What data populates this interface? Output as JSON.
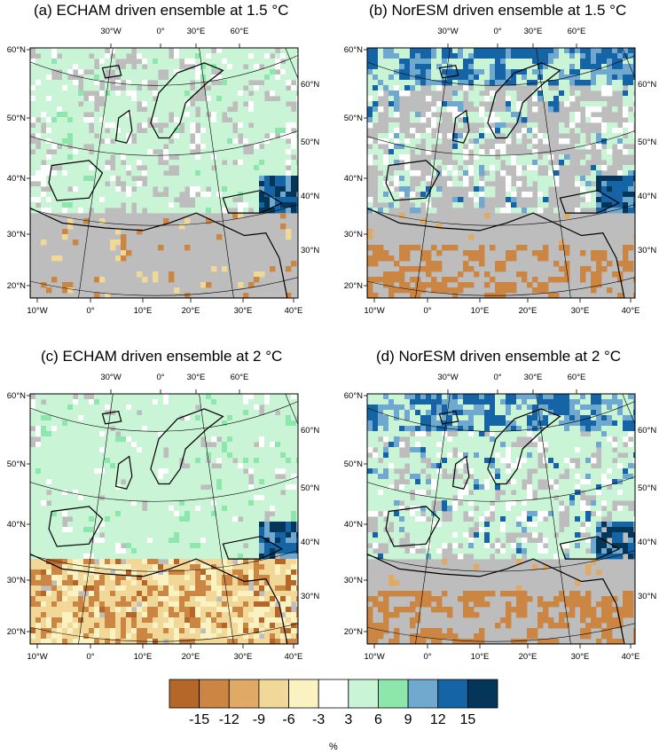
{
  "panels": [
    {
      "id": "a",
      "title": "(a) ECHAM driven ensemble at 1.5 °C",
      "model": "ECHAM",
      "warming": "1.5"
    },
    {
      "id": "b",
      "title": "(b) NorESM driven ensemble at 1.5 °C",
      "model": "NorESM",
      "warming": "1.5"
    },
    {
      "id": "c",
      "title": "(c) ECHAM driven ensemble at 2 °C",
      "model": "ECHAM",
      "warming": "2"
    },
    {
      "id": "d",
      "title": "(d) NorESM driven ensemble at 2 °C",
      "model": "NorESM",
      "warming": "2"
    }
  ],
  "axis_labels": {
    "bottom": [
      "10°W",
      "0°",
      "10°E",
      "20°E",
      "30°E",
      "40°E"
    ],
    "left": [
      "60°N",
      "50°N",
      "40°N",
      "30°N",
      "20°N"
    ],
    "top": [
      "30°W",
      "0°",
      "30°E",
      "60°E"
    ],
    "right": [
      "60°N",
      "50°N",
      "40°N",
      "30°N"
    ]
  },
  "colorbar": {
    "labels": [
      "-15",
      "-12",
      "-9",
      "-6",
      "-3",
      "3",
      "6",
      "9",
      "12",
      "15"
    ],
    "colors": [
      "#b5672a",
      "#cc8644",
      "#e0aa66",
      "#f2d898",
      "#fbf2c2",
      "#ffffff",
      "#c9f5d6",
      "#8de6ac",
      "#6fa9cf",
      "#1565a6",
      "#033658"
    ],
    "unit": "%"
  },
  "colors": {
    "no_signal_gray": "#bdbdbd",
    "ocean_fill": "#ffffff",
    "coastline": "#000000"
  }
}
